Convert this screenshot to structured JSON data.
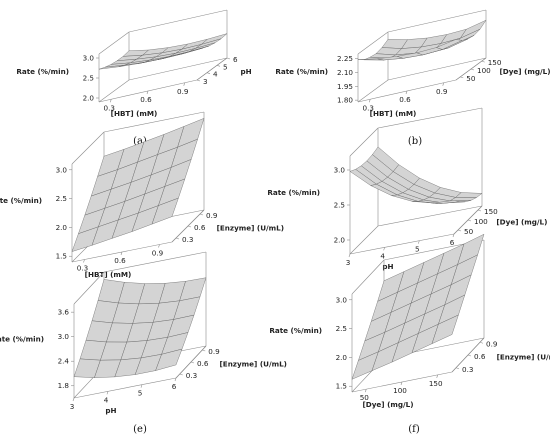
{
  "colors": {
    "surface_fill": "#d4d4d4",
    "mesh_line": "#555555",
    "box_line": "#8c8c8c",
    "text": "#222222"
  },
  "chart_data": [
    {
      "type": "surface",
      "caption": "(a)",
      "zlabel": "Rate (%/min)",
      "xlabel": "[HBT] (mM)",
      "ylabel": "pH",
      "x_ticks": [
        "0.3",
        "0.6",
        "0.9"
      ],
      "y_ticks": [
        "3",
        "4",
        "5",
        "6"
      ],
      "z_ticks": [
        "2.0",
        "2.5",
        "3.0"
      ],
      "xlim": [
        0.2,
        1.0
      ],
      "ylim": [
        3,
        6
      ],
      "zlim": [
        1.9,
        3.1
      ],
      "grid": [
        [
          2.72,
          2.67,
          2.64,
          2.63,
          2.64,
          2.66
        ],
        [
          2.66,
          2.6,
          2.56,
          2.55,
          2.56,
          2.59
        ],
        [
          2.62,
          2.55,
          2.51,
          2.49,
          2.5,
          2.53
        ],
        [
          2.6,
          2.53,
          2.48,
          2.46,
          2.47,
          2.5
        ],
        [
          2.6,
          2.52,
          2.47,
          2.45,
          2.46,
          2.49
        ],
        [
          2.63,
          2.54,
          2.49,
          2.47,
          2.48,
          2.51
        ]
      ]
    },
    {
      "type": "surface",
      "caption": "(b)",
      "zlabel": "Rate (%/min)",
      "xlabel": "[HBT] (mM)",
      "ylabel": "[Dye] (mg/L)",
      "x_ticks": [
        "0.3",
        "0.6",
        "0.9"
      ],
      "y_ticks": [
        "50",
        "100",
        "150"
      ],
      "z_ticks": [
        "1.80",
        "1.95",
        "2.10",
        "2.25"
      ],
      "xlim": [
        0.2,
        1.0
      ],
      "ylim": [
        30,
        170
      ],
      "zlim": [
        1.78,
        2.3
      ],
      "grid": [
        [
          2.24,
          2.2,
          2.18,
          2.17,
          2.18,
          2.22
        ],
        [
          2.19,
          2.14,
          2.11,
          2.1,
          2.11,
          2.16
        ],
        [
          2.17,
          2.11,
          2.08,
          2.07,
          2.08,
          2.13
        ],
        [
          2.16,
          2.1,
          2.07,
          2.06,
          2.07,
          2.12
        ],
        [
          2.18,
          2.12,
          2.09,
          2.08,
          2.09,
          2.14
        ],
        [
          2.22,
          2.17,
          2.14,
          2.13,
          2.14,
          2.19
        ]
      ]
    },
    {
      "type": "surface",
      "caption": "(c)",
      "zlabel": "Rate (%/min)",
      "xlabel": "[HBT] (mM)",
      "ylabel": "[Enzyme] (U/mL)",
      "x_ticks": [
        "0.3",
        "0.6",
        "0.9"
      ],
      "y_ticks": [
        "0.3",
        "0.6",
        "0.9"
      ],
      "z_ticks": [
        "1.5",
        "2.0",
        "2.5",
        "3.0"
      ],
      "xlim": [
        0.2,
        1.0
      ],
      "ylim": [
        0.2,
        1.0
      ],
      "zlim": [
        1.4,
        3.1
      ],
      "grid": [
        [
          1.58,
          1.62,
          1.67,
          1.72,
          1.78,
          1.84
        ],
        [
          1.78,
          1.83,
          1.88,
          1.93,
          1.99,
          2.05
        ],
        [
          1.99,
          2.04,
          2.09,
          2.15,
          2.21,
          2.27
        ],
        [
          2.21,
          2.26,
          2.31,
          2.37,
          2.43,
          2.5
        ],
        [
          2.44,
          2.49,
          2.55,
          2.61,
          2.67,
          2.74
        ],
        [
          2.68,
          2.73,
          2.79,
          2.85,
          2.92,
          2.99
        ]
      ]
    },
    {
      "type": "surface",
      "caption": "(d)",
      "zlabel": "Rate (%/min)",
      "xlabel": "pH",
      "ylabel": "[Dye] (mg/L)",
      "x_ticks": [
        "3",
        "4",
        "5",
        "6"
      ],
      "y_ticks": [
        "50",
        "100",
        "150"
      ],
      "z_ticks": [
        "2.0",
        "2.5",
        "3.0"
      ],
      "xlim": [
        3,
        6
      ],
      "ylim": [
        30,
        170
      ],
      "zlim": [
        1.8,
        3.2
      ],
      "grid": [
        [
          2.98,
          2.72,
          2.52,
          2.38,
          2.3,
          2.28
        ],
        [
          2.93,
          2.66,
          2.45,
          2.3,
          2.21,
          2.18
        ],
        [
          2.9,
          2.62,
          2.4,
          2.24,
          2.14,
          2.1
        ],
        [
          2.89,
          2.6,
          2.37,
          2.2,
          2.09,
          2.04
        ],
        [
          2.9,
          2.6,
          2.36,
          2.18,
          2.06,
          2.0
        ],
        [
          2.93,
          2.62,
          2.37,
          2.18,
          2.05,
          1.98
        ]
      ]
    },
    {
      "type": "surface",
      "caption": "(e)",
      "zlabel": "Rate (%/min)",
      "xlabel": "pH",
      "ylabel": "[Enzyme] (U/mL)",
      "x_ticks": [
        "3",
        "4",
        "5",
        "6"
      ],
      "y_ticks": [
        "0.3",
        "0.6",
        "0.9"
      ],
      "z_ticks": [
        "1.8",
        "2.4",
        "3.0",
        "3.6"
      ],
      "xlim": [
        3,
        6
      ],
      "ylim": [
        0.2,
        1.0
      ],
      "zlim": [
        1.5,
        3.8
      ],
      "grid": [
        [
          2.02,
          1.9,
          1.82,
          1.78,
          1.78,
          1.82
        ],
        [
          2.3,
          2.17,
          2.08,
          2.03,
          2.02,
          2.05
        ],
        [
          2.6,
          2.46,
          2.36,
          2.3,
          2.28,
          2.3
        ],
        [
          2.92,
          2.77,
          2.66,
          2.59,
          2.56,
          2.57
        ],
        [
          3.26,
          3.1,
          2.98,
          2.9,
          2.86,
          2.86
        ],
        [
          3.62,
          3.45,
          3.32,
          3.23,
          3.18,
          3.17
        ]
      ]
    },
    {
      "type": "surface",
      "caption": "(f)",
      "zlabel": "Rate (%/min)",
      "xlabel": "[Dye] (mg/L)",
      "ylabel": "[Enzyme] (U/mL)",
      "x_ticks": [
        "50",
        "100",
        "150"
      ],
      "y_ticks": [
        "0.3",
        "0.6",
        "0.9"
      ],
      "z_ticks": [
        "1.5",
        "2.0",
        "2.5",
        "3.0"
      ],
      "xlim": [
        30,
        170
      ],
      "ylim": [
        0.2,
        1.0
      ],
      "zlim": [
        1.4,
        3.1
      ],
      "grid": [
        [
          1.62,
          1.7,
          1.78,
          1.87,
          1.96,
          2.05
        ],
        [
          1.83,
          1.91,
          2.0,
          2.09,
          2.18,
          2.27
        ],
        [
          2.05,
          2.13,
          2.22,
          2.31,
          2.4,
          2.5
        ],
        [
          2.27,
          2.36,
          2.45,
          2.54,
          2.63,
          2.73
        ],
        [
          2.5,
          2.59,
          2.68,
          2.77,
          2.86,
          2.96
        ],
        [
          2.74,
          2.83,
          2.92,
          3.01,
          3.1,
          3.2
        ]
      ]
    }
  ]
}
